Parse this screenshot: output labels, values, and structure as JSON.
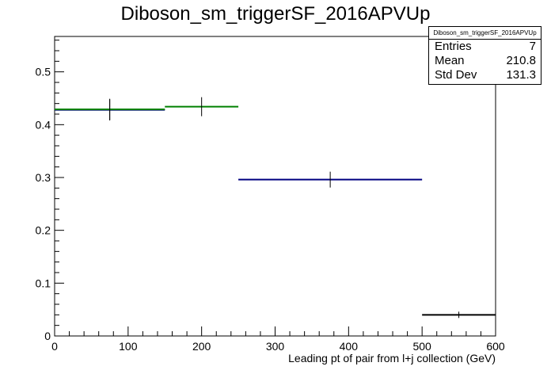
{
  "chart_data": {
    "type": "histogram",
    "title": "Diboson_sm_triggerSF_2016APVUp",
    "xlabel": "Leading pt of pair from l+j collection (GeV)",
    "ylabel": "",
    "xlim": [
      0,
      600
    ],
    "ylim": [
      0,
      0.567
    ],
    "x_ticks": [
      0,
      100,
      200,
      300,
      400,
      500,
      600
    ],
    "y_ticks": [
      0,
      0.1,
      0.2,
      0.3,
      0.4,
      0.5
    ],
    "y_tick_labels": [
      "0",
      "0.1",
      "0.2",
      "0.3",
      "0.4",
      "0.5"
    ],
    "grid": false,
    "bins": [
      {
        "xlow": 0,
        "xhigh": 150,
        "value": 0.428,
        "err": 0.02,
        "color": "#000080"
      },
      {
        "xlow": 0,
        "xhigh": 150,
        "value": 0.429,
        "err": 0.02,
        "color": "#008000"
      },
      {
        "xlow": 150,
        "xhigh": 250,
        "value": 0.434,
        "err": 0.018,
        "color": "#008000"
      },
      {
        "xlow": 250,
        "xhigh": 500,
        "value": 0.296,
        "err": 0.015,
        "color": "#000080"
      },
      {
        "xlow": 500,
        "xhigh": 600,
        "value": 0.04,
        "err": 0.006,
        "color": "#000000"
      }
    ],
    "stats": {
      "name": "Diboson_sm_triggerSF_2016APVUp",
      "entries_label": "Entries",
      "entries": "7",
      "mean_label": "Mean",
      "mean": "210.8",
      "std_label": "Std Dev",
      "std": "131.3"
    }
  }
}
